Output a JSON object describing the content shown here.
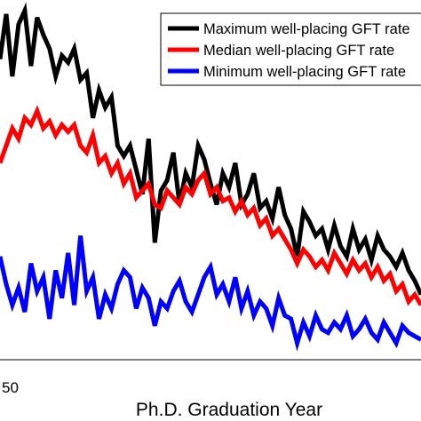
{
  "chart_data": {
    "type": "line",
    "xlabel": "Ph.D. Graduation Year",
    "ylabel": "",
    "x_tick_labels": [
      {
        "x": 0,
        "label": "50"
      }
    ],
    "xlim": [
      0,
      68
    ],
    "ylim": [
      0,
      100
    ],
    "legend": {
      "position": "top-right"
    },
    "series": [
      {
        "name": "Maximum well-placing GFT rate",
        "color": "#000000",
        "x": [
          0,
          1,
          2,
          3,
          4,
          5,
          6,
          7,
          8,
          9,
          10,
          11,
          12,
          13,
          14,
          15,
          16,
          17,
          18,
          19,
          20,
          21,
          22,
          23,
          24,
          25,
          26,
          27,
          28,
          29,
          30,
          31,
          32,
          33,
          34,
          35,
          36,
          37,
          38,
          39,
          40,
          41,
          42,
          43,
          44,
          45,
          46,
          47,
          48,
          49,
          50,
          51,
          52,
          53,
          54,
          55,
          56,
          57,
          58,
          59,
          60,
          61,
          62,
          63,
          64,
          65,
          66,
          67,
          68
        ],
        "values": [
          85,
          98,
          80,
          95,
          99,
          83,
          97,
          92,
          88,
          80,
          86,
          84,
          88,
          79,
          81,
          68,
          76,
          71,
          74,
          60,
          57,
          60,
          53,
          46,
          62,
          32,
          47,
          50,
          58,
          43,
          52,
          48,
          60,
          56,
          49,
          43,
          52,
          48,
          55,
          43,
          46,
          52,
          42,
          44,
          39,
          48,
          40,
          36,
          28,
          41,
          38,
          34,
          36,
          30,
          37,
          31,
          28,
          36,
          30,
          33,
          27,
          34,
          30,
          28,
          25,
          29,
          24,
          21,
          17
        ]
      },
      {
        "name": "Median well-placing GFT rate",
        "color": "#ff0000",
        "x": [
          0,
          1,
          2,
          3,
          4,
          5,
          6,
          7,
          8,
          9,
          10,
          11,
          12,
          13,
          14,
          15,
          16,
          17,
          18,
          19,
          20,
          21,
          22,
          23,
          24,
          25,
          26,
          27,
          28,
          29,
          30,
          31,
          32,
          33,
          34,
          35,
          36,
          37,
          38,
          39,
          40,
          41,
          42,
          43,
          44,
          45,
          46,
          47,
          48,
          49,
          50,
          51,
          52,
          53,
          54,
          55,
          56,
          57,
          58,
          59,
          60,
          61,
          62,
          63,
          64,
          65,
          66,
          67,
          68
        ],
        "values": [
          55,
          60,
          65,
          62,
          68,
          66,
          70,
          65,
          67,
          63,
          66,
          64,
          66,
          60,
          58,
          63,
          55,
          57,
          52,
          55,
          49,
          52,
          45,
          47,
          49,
          43,
          42,
          47,
          45,
          43,
          48,
          46,
          50,
          52,
          46,
          48,
          44,
          45,
          41,
          44,
          40,
          42,
          37,
          39,
          34,
          36,
          33,
          30,
          26,
          30,
          28,
          25,
          27,
          24,
          29,
          26,
          23,
          27,
          24,
          26,
          22,
          25,
          21,
          23,
          18,
          20,
          15,
          17,
          14
        ]
      },
      {
        "name": "Minimum well-placing GFT rate",
        "color": "#0000ff",
        "x": [
          0,
          1,
          2,
          3,
          4,
          5,
          6,
          7,
          8,
          9,
          10,
          11,
          12,
          13,
          14,
          15,
          16,
          17,
          18,
          19,
          20,
          21,
          22,
          23,
          24,
          25,
          26,
          27,
          28,
          29,
          30,
          31,
          32,
          33,
          34,
          35,
          36,
          37,
          38,
          39,
          40,
          41,
          42,
          43,
          44,
          45,
          46,
          47,
          48,
          49,
          50,
          51,
          52,
          53,
          54,
          55,
          56,
          57,
          58,
          59,
          60,
          61,
          62,
          63,
          64,
          65,
          66,
          67,
          68
        ],
        "values": [
          28,
          20,
          14,
          19,
          12,
          26,
          18,
          22,
          10,
          24,
          16,
          29,
          14,
          34,
          18,
          22,
          10,
          17,
          13,
          20,
          24,
          22,
          13,
          19,
          16,
          8,
          15,
          13,
          18,
          21,
          15,
          12,
          17,
          22,
          25,
          17,
          20,
          15,
          22,
          13,
          18,
          11,
          15,
          13,
          8,
          16,
          11,
          10,
          3,
          9,
          5,
          11,
          7,
          6,
          9,
          7,
          11,
          5,
          7,
          10,
          6,
          4,
          9,
          6,
          3,
          8,
          6,
          5,
          4
        ]
      }
    ]
  }
}
